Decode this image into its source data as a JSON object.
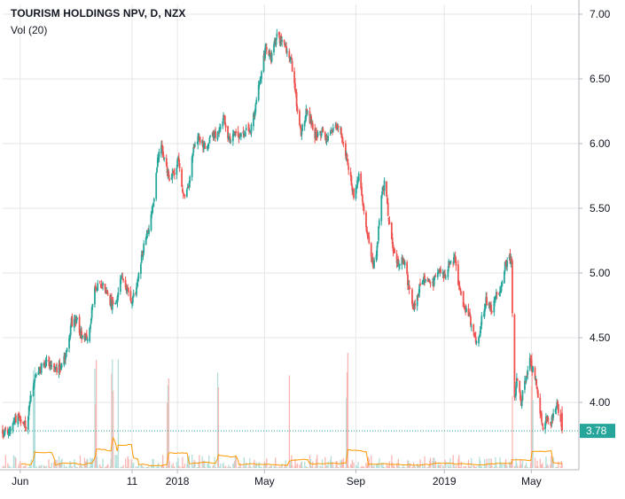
{
  "colors": {
    "up": "#26a69a",
    "down": "#ef5350",
    "vol_up": "#b2dfdb",
    "vol_down": "#f8b7b3",
    "vol_ma": "#ff9800",
    "last_price": "#26a69a",
    "grid": "#e6e6e6",
    "axis_text": "#131722",
    "border": "#b2b5be"
  },
  "chart_data": {
    "type": "candlestick",
    "title": "TOURISM HOLDINGS NPV, D, NZX",
    "volume_label": "Vol (20)",
    "x_tick_labels": [
      "Jun",
      "11",
      "2018",
      "May",
      "Sep",
      "2019",
      "May"
    ],
    "x_tick_dates": [
      "2017-06-01",
      "2017-11-01",
      "2018-01-02",
      "2018-05-01",
      "2018-09-03",
      "2019-01-02",
      "2019-05-01"
    ],
    "x_range": [
      "2017-05-08",
      "2019-07-05"
    ],
    "y_ticks": [
      "7.00",
      "6.50",
      "6.00",
      "5.50",
      "5.00",
      "4.50",
      "4.00"
    ],
    "y_range": [
      3.1,
      7.0
    ],
    "last_price": "3.78",
    "price_path": [
      [
        "2017-05-08",
        3.78
      ],
      [
        "2017-05-16",
        3.74
      ],
      [
        "2017-05-24",
        3.85
      ],
      [
        "2017-06-01",
        3.88
      ],
      [
        "2017-06-09",
        3.82
      ],
      [
        "2017-06-15",
        4.02
      ],
      [
        "2017-06-22",
        4.18
      ],
      [
        "2017-06-30",
        4.28
      ],
      [
        "2017-07-10",
        4.3
      ],
      [
        "2017-07-20",
        4.26
      ],
      [
        "2017-07-28",
        4.28
      ],
      [
        "2017-08-04",
        4.4
      ],
      [
        "2017-08-10",
        4.62
      ],
      [
        "2017-08-17",
        4.63
      ],
      [
        "2017-08-24",
        4.52
      ],
      [
        "2017-09-01",
        4.5
      ],
      [
        "2017-09-06",
        4.65
      ],
      [
        "2017-09-11",
        4.9
      ],
      [
        "2017-09-18",
        4.92
      ],
      [
        "2017-09-28",
        4.85
      ],
      [
        "2017-10-04",
        4.75
      ],
      [
        "2017-10-11",
        4.78
      ],
      [
        "2017-10-18",
        4.98
      ],
      [
        "2017-10-24",
        4.9
      ],
      [
        "2017-10-30",
        4.78
      ],
      [
        "2017-11-06",
        4.85
      ],
      [
        "2017-11-15",
        5.15
      ],
      [
        "2017-11-22",
        5.3
      ],
      [
        "2017-11-30",
        5.55
      ],
      [
        "2017-12-06",
        5.9
      ],
      [
        "2017-12-11",
        6.0
      ],
      [
        "2017-12-16",
        5.85
      ],
      [
        "2017-12-22",
        5.72
      ],
      [
        "2017-12-28",
        5.78
      ],
      [
        "2018-01-04",
        5.88
      ],
      [
        "2018-01-09",
        5.62
      ],
      [
        "2018-01-13",
        5.55
      ],
      [
        "2018-01-18",
        5.72
      ],
      [
        "2018-01-24",
        5.95
      ],
      [
        "2018-01-31",
        6.05
      ],
      [
        "2018-02-08",
        5.98
      ],
      [
        "2018-02-16",
        6.04
      ],
      [
        "2018-02-23",
        6.08
      ],
      [
        "2018-03-01",
        6.12
      ],
      [
        "2018-03-06",
        6.22
      ],
      [
        "2018-03-13",
        6.04
      ],
      [
        "2018-03-21",
        6.08
      ],
      [
        "2018-03-29",
        6.06
      ],
      [
        "2018-04-06",
        6.1
      ],
      [
        "2018-04-13",
        6.12
      ],
      [
        "2018-04-20",
        6.32
      ],
      [
        "2018-04-27",
        6.55
      ],
      [
        "2018-05-03",
        6.75
      ],
      [
        "2018-05-10",
        6.65
      ],
      [
        "2018-05-17",
        6.82
      ],
      [
        "2018-05-24",
        6.8
      ],
      [
        "2018-05-31",
        6.72
      ],
      [
        "2018-06-07",
        6.62
      ],
      [
        "2018-06-13",
        6.35
      ],
      [
        "2018-06-20",
        6.08
      ],
      [
        "2018-06-27",
        6.25
      ],
      [
        "2018-07-03",
        6.18
      ],
      [
        "2018-07-11",
        6.04
      ],
      [
        "2018-07-19",
        6.1
      ],
      [
        "2018-07-26",
        6.04
      ],
      [
        "2018-08-02",
        6.12
      ],
      [
        "2018-08-10",
        6.15
      ],
      [
        "2018-08-17",
        6.0
      ],
      [
        "2018-08-24",
        5.82
      ],
      [
        "2018-08-31",
        5.6
      ],
      [
        "2018-09-07",
        5.75
      ],
      [
        "2018-09-14",
        5.5
      ],
      [
        "2018-09-20",
        5.25
      ],
      [
        "2018-09-27",
        5.05
      ],
      [
        "2018-10-02",
        5.2
      ],
      [
        "2018-10-08",
        5.6
      ],
      [
        "2018-10-13",
        5.72
      ],
      [
        "2018-10-19",
        5.35
      ],
      [
        "2018-10-25",
        5.15
      ],
      [
        "2018-10-31",
        5.05
      ],
      [
        "2018-11-07",
        5.12
      ],
      [
        "2018-11-14",
        4.9
      ],
      [
        "2018-11-21",
        4.72
      ],
      [
        "2018-11-27",
        4.85
      ],
      [
        "2018-12-03",
        4.95
      ],
      [
        "2018-12-10",
        4.95
      ],
      [
        "2018-12-17",
        4.92
      ],
      [
        "2018-12-24",
        5.02
      ],
      [
        "2019-01-03",
        4.98
      ],
      [
        "2019-01-09",
        5.1
      ],
      [
        "2019-01-16",
        5.12
      ],
      [
        "2019-01-22",
        4.88
      ],
      [
        "2019-01-28",
        4.75
      ],
      [
        "2019-02-04",
        4.68
      ],
      [
        "2019-02-11",
        4.55
      ],
      [
        "2019-02-16",
        4.42
      ],
      [
        "2019-02-21",
        4.62
      ],
      [
        "2019-02-28",
        4.78
      ],
      [
        "2019-03-07",
        4.72
      ],
      [
        "2019-03-14",
        4.82
      ],
      [
        "2019-03-21",
        4.88
      ],
      [
        "2019-03-26",
        5.05
      ],
      [
        "2019-03-31",
        5.12
      ],
      [
        "2019-04-04",
        5.08
      ],
      [
        "2019-04-07",
        4.0
      ],
      [
        "2019-04-12",
        4.2
      ],
      [
        "2019-04-17",
        4.0
      ],
      [
        "2019-04-23",
        4.18
      ],
      [
        "2019-04-29",
        4.32
      ],
      [
        "2019-05-07",
        4.18
      ],
      [
        "2019-05-13",
        3.9
      ],
      [
        "2019-05-17",
        3.82
      ],
      [
        "2019-05-23",
        3.88
      ],
      [
        "2019-05-28",
        3.85
      ],
      [
        "2019-06-05",
        4.02
      ],
      [
        "2019-06-12",
        3.78
      ]
    ],
    "volume_spike_dates": [
      "2017-06-20",
      "2017-09-12",
      "2017-10-05",
      "2017-10-14",
      "2017-12-20",
      "2018-02-26",
      "2018-06-03",
      "2018-08-22",
      "2019-04-06",
      "2019-05-02"
    ],
    "volume_ma": {
      "name": "Vol (20)"
    },
    "grid": true
  }
}
